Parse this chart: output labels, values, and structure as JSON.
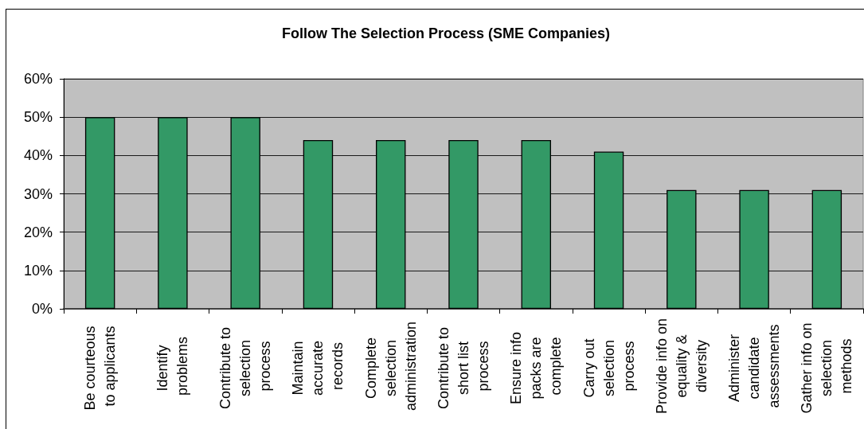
{
  "chart_data": {
    "type": "bar",
    "title": "Follow The Selection Process (SME Companies)",
    "categories": [
      "Be courteous to applicants",
      "Identify problems",
      "Contribute to selection process",
      "Maintain accurate records",
      "Complete selection administration",
      "Contribute to short list process",
      "Ensure info packs are complete",
      "Carry out selection process",
      "Provide info on equality & diversity",
      "Administer candidate assessments",
      "Gather info on selection methods"
    ],
    "values": [
      50,
      50,
      50,
      44,
      44,
      44,
      44,
      41,
      31,
      31,
      31
    ],
    "color": "#339966",
    "ylim": [
      0,
      60
    ],
    "yticks": [
      {
        "value": 0,
        "label": "0%"
      },
      {
        "value": 10,
        "label": "10%"
      },
      {
        "value": 20,
        "label": "20%"
      },
      {
        "value": 30,
        "label": "30%"
      },
      {
        "value": 40,
        "label": "40%"
      },
      {
        "value": 50,
        "label": "50%"
      },
      {
        "value": 60,
        "label": "60%"
      }
    ],
    "grid": "y"
  }
}
